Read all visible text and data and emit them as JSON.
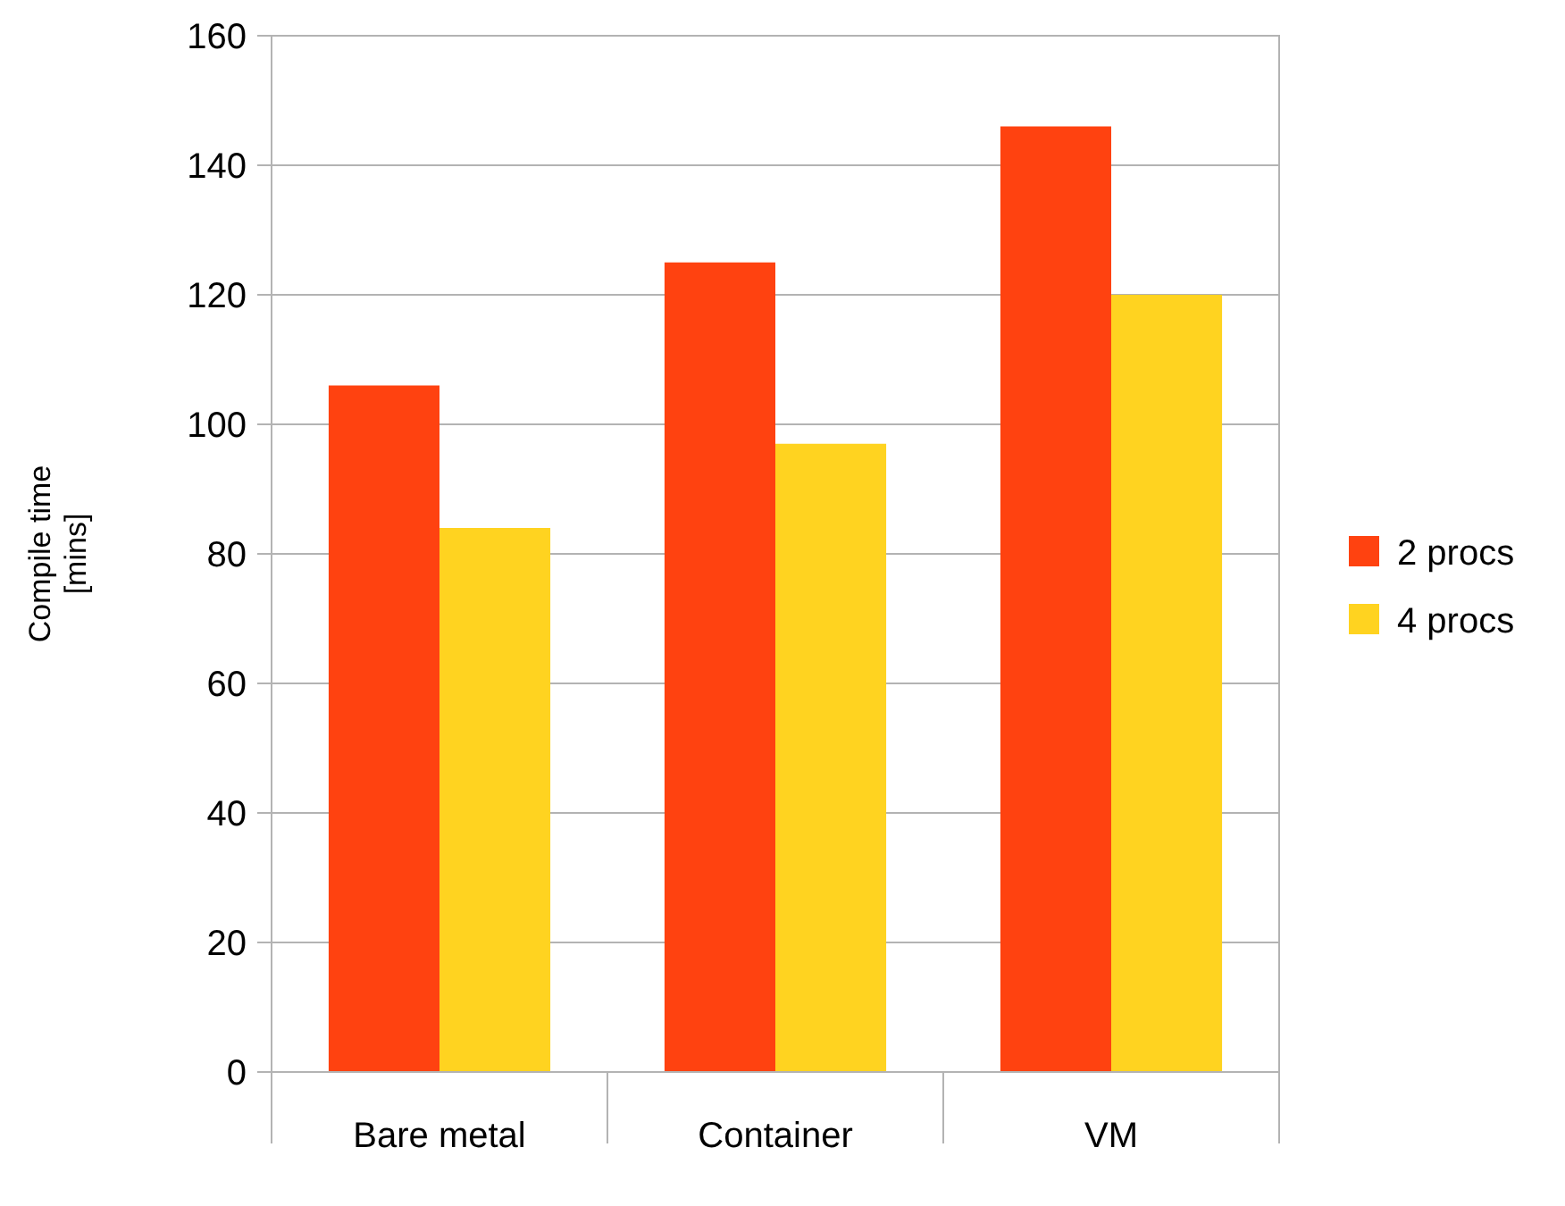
{
  "chart_data": {
    "type": "bar",
    "ylabel": "Compile time\n[mins]",
    "categories": [
      "Bare metal",
      "Container",
      "VM"
    ],
    "series": [
      {
        "name": "2 procs",
        "color": "#ff4210",
        "values": [
          106,
          125,
          146
        ]
      },
      {
        "name": "4 procs",
        "color": "#ffd320",
        "values": [
          84,
          97,
          120
        ]
      }
    ],
    "ylim": [
      0,
      160
    ],
    "yticks": [
      0,
      20,
      40,
      60,
      80,
      100,
      120,
      140,
      160
    ],
    "grid": "y",
    "legend": "right"
  }
}
